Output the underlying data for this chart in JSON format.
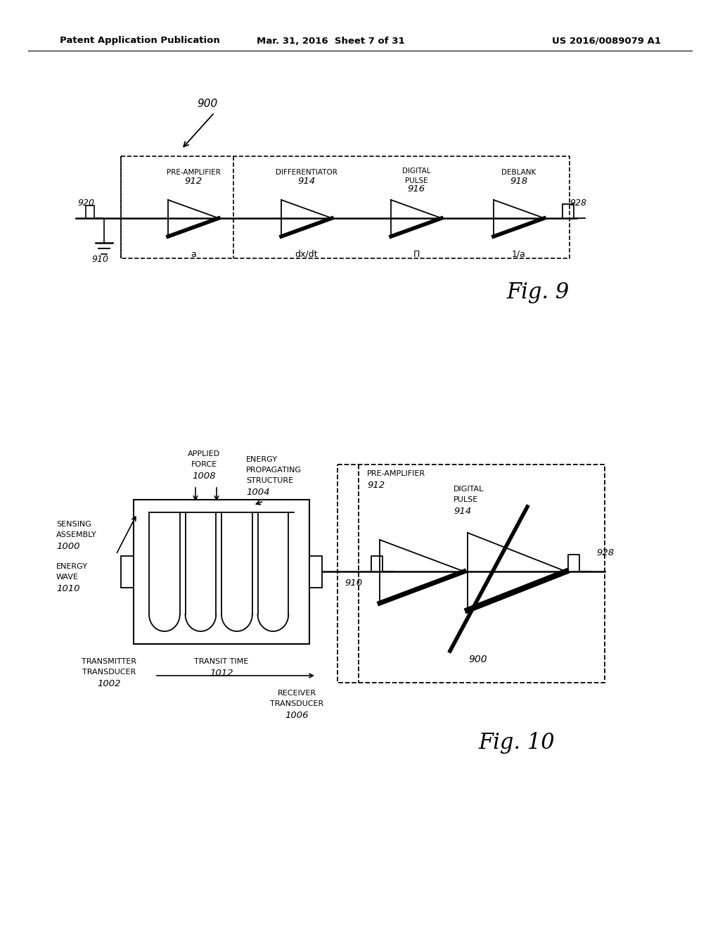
{
  "bg_color": "#ffffff",
  "header_left": "Patent Application Publication",
  "header_mid": "Mar. 31, 2016  Sheet 7 of 31",
  "header_right": "US 2016/0089079 A1",
  "fig9_label": "Fig. 9",
  "fig10_label": "Fig. 10"
}
